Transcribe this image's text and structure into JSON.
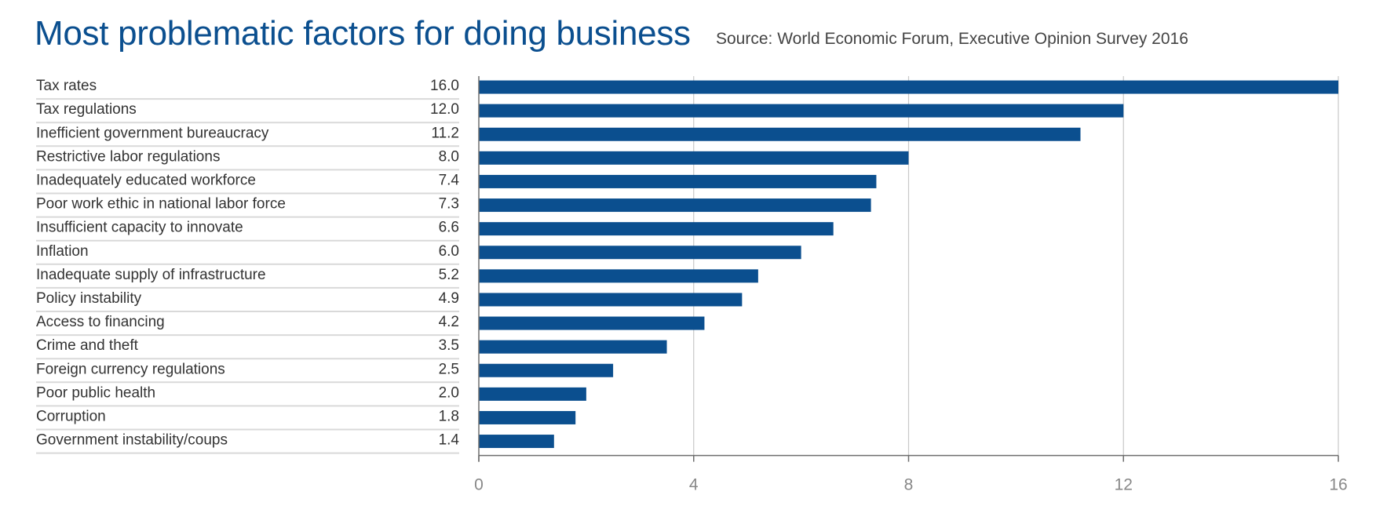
{
  "chart_data": {
    "type": "bar",
    "orientation": "horizontal",
    "title": "Most problematic factors for doing business",
    "subtitle": "Source: World Economic Forum, Executive Opinion Survey 2016",
    "categories": [
      "Tax rates",
      "Tax regulations",
      "Inefficient government bureaucracy",
      "Restrictive labor regulations",
      "Inadequately educated workforce",
      "Poor work ethic in national labor force",
      "Insufficient capacity to innovate",
      "Inflation",
      "Inadequate supply of infrastructure",
      "Policy instability",
      "Access to financing",
      "Crime and theft",
      "Foreign currency regulations",
      "Poor public health",
      "Corruption",
      "Government instability/coups"
    ],
    "values": [
      16.0,
      12.0,
      11.2,
      8.0,
      7.4,
      7.3,
      6.6,
      6.0,
      5.2,
      4.9,
      4.2,
      3.5,
      2.5,
      2.0,
      1.8,
      1.4
    ],
    "value_labels": [
      "16.0",
      "12.0",
      "11.2",
      "8.0",
      "7.4",
      "7.3",
      "6.6",
      "6.0",
      "5.2",
      "4.9",
      "4.2",
      "3.5",
      "2.5",
      "2.0",
      "1.8",
      "1.4"
    ],
    "xlim": [
      0,
      16
    ],
    "xticks": [
      0,
      4,
      8,
      12,
      16
    ],
    "xtick_labels": [
      "0",
      "4",
      "8",
      "12",
      "16"
    ],
    "xlabel": "",
    "ylabel": "",
    "grid": true,
    "legend": "none",
    "bar_color": "#0b4f8f",
    "title_color": "#0b4f8f"
  }
}
